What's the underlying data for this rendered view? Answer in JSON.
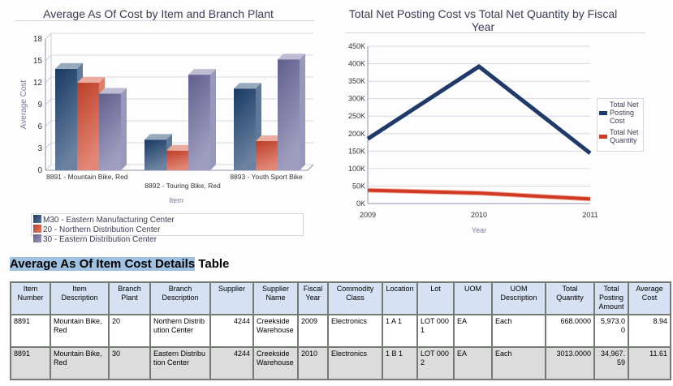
{
  "charts": {
    "bar": {
      "title": "Average As Of Cost by Item and Branch Plant"
    },
    "line": {
      "title": "Total Net Posting Cost vs Total Net Quantity by Fiscal Year"
    }
  },
  "chart_data": [
    {
      "type": "bar",
      "title": "Average As Of Cost by Item and Branch Plant",
      "xlabel": "Item",
      "ylabel": "Average Cost",
      "ylim": [
        0,
        18
      ],
      "yticks": [
        "0",
        "3",
        "6",
        "9",
        "12",
        "15",
        "18"
      ],
      "grid": true,
      "style": "3d",
      "categories": [
        "8891 - Mountain Bike, Red",
        "8892 - Touring Bike, Red",
        "8893 - Youth Sport Bike"
      ],
      "series": [
        {
          "name": "M30 - Eastern Manufacturing Center",
          "values": [
            13.9,
            4.2,
            11.2
          ],
          "color": "#1b3f6e"
        },
        {
          "name": "20 - Northern Distribution Center",
          "values": [
            12.0,
            2.7,
            4.0
          ],
          "color": "#d2452a"
        },
        {
          "name": "30 - Eastern Distribution Center",
          "values": [
            10.5,
            13.1,
            15.2
          ],
          "color": "#6d6a9e"
        }
      ],
      "legend": "bottom"
    },
    {
      "type": "line",
      "title": "Total Net Posting Cost vs Total Net Quantity by Fiscal Year",
      "xlabel": "Year",
      "ylabel": "",
      "x": [
        "2009",
        "2010",
        "2011"
      ],
      "ylim": [
        0,
        450000
      ],
      "yticks": [
        "0K",
        "50K",
        "100K",
        "150K",
        "200K",
        "250K",
        "300K",
        "350K",
        "400K",
        "450K"
      ],
      "grid": true,
      "series": [
        {
          "name": "Total Net Posting Cost",
          "values": [
            185000,
            392000,
            144000
          ],
          "color": "#1f3a68"
        },
        {
          "name": "Total Net Quantity",
          "values": [
            38000,
            30000,
            13000
          ],
          "color": "#d03a24"
        }
      ],
      "legend": "right"
    }
  ],
  "table": {
    "title_highlight": "Average As Of Item Cost Details",
    "title_rest": " Table",
    "columns": [
      "Item Number",
      "Item Description",
      "Branch Plant",
      "Branch Description",
      "Supplier",
      "Supplier Name",
      "Fiscal Year",
      "Commodity Class",
      "Location",
      "Lot",
      "UOM",
      "UOM Description",
      "Total Quantity",
      "Total Posting Amount",
      "Average Cost"
    ],
    "rows": [
      [
        "8891",
        "Mountain Bike, Red",
        "20",
        "Northern Distribution Center",
        "4244",
        "Creekside Warehouse",
        "2009",
        "Electronics",
        "1 A 1",
        "LOT 0001",
        "EA",
        "Each",
        "668.0000",
        "5,973.00",
        "8.94"
      ],
      [
        "8891",
        "Mountain Bike, Red",
        "30",
        "Eastern Distribution Center",
        "4244",
        "Creekside Warehouse",
        "2010",
        "Electronics",
        "1 B 1",
        "LOT 0002",
        "EA",
        "Each",
        "3013.0000",
        "34,967.59",
        "11.61"
      ]
    ]
  }
}
